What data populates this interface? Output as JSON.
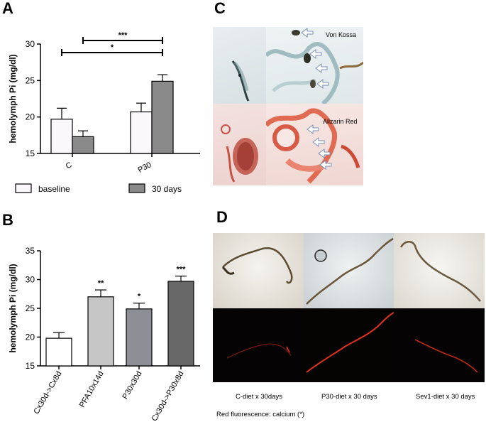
{
  "panels": {
    "a": {
      "letter": "A"
    },
    "b": {
      "letter": "B"
    },
    "c": {
      "letter": "C",
      "von_kossa_label": "Von Kossa",
      "alizarin_label": "Alizarin Red"
    },
    "d": {
      "letter": "D",
      "captions": [
        "C-diet x 30days",
        "P30-diet x 30 days",
        "Sev1-diet x 30 days"
      ],
      "footnote": "Red fluorescence: calcium (*)"
    }
  },
  "colors": {
    "baseline": "#fbf8fc",
    "day30": "#8a8a8a",
    "panelB": [
      "#ffffff",
      "#c6c6c6",
      "#8e8e96",
      "#686868"
    ],
    "tissue_red": "#d9573f",
    "fluorescence": "#e0321c"
  },
  "chart_data": [
    {
      "type": "bar",
      "ylabel": "hemolymph  Pi (mg/dl)",
      "ylim": [
        15,
        30
      ],
      "yticks": [
        "15",
        "20",
        "25",
        "30"
      ],
      "categories": [
        "C",
        "P30"
      ],
      "legend": "bottom",
      "series": [
        {
          "name": "baseline",
          "values": [
            19.7,
            20.7
          ],
          "errors": [
            1.5,
            1.2
          ]
        },
        {
          "name": "30 days",
          "values": [
            17.3,
            24.9
          ],
          "errors": [
            0.8,
            0.9
          ]
        }
      ],
      "brackets": [
        {
          "label": "***",
          "from": "C / 30 days",
          "to": "P30 / 30 days"
        },
        {
          "label": "*",
          "from": "C / baseline",
          "to": "P30 / 30 days"
        }
      ]
    },
    {
      "type": "bar",
      "ylabel": "hemolymph  Pi (mg/dl)",
      "ylim": [
        15,
        35
      ],
      "yticks": [
        "15",
        "20",
        "25",
        "30",
        "35"
      ],
      "categories": [
        "Cx30d->Cx8d",
        "PFA10x14d",
        "P30x30d",
        "Cx30d->P30x8d"
      ],
      "values": [
        19.8,
        27.0,
        24.9,
        29.7
      ],
      "errors": [
        1.0,
        1.2,
        1.0,
        0.9
      ],
      "significance": [
        "",
        "**",
        "*",
        "***"
      ]
    }
  ]
}
